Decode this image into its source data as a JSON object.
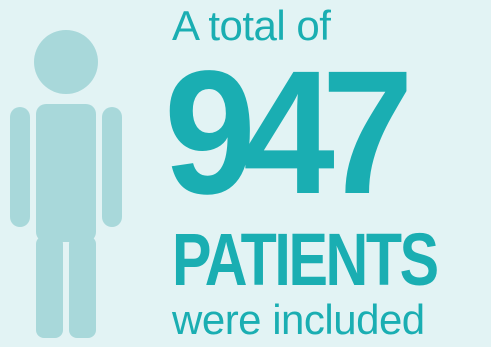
{
  "colors": {
    "background": "#e2f3f4",
    "accent": "#1aaeb2",
    "figure": "#a8d8da"
  },
  "figure": {
    "icon": "person-icon"
  },
  "infographic": {
    "intro": "A total of",
    "number": "947",
    "noun": "PATIENTS",
    "outro": "were included"
  }
}
